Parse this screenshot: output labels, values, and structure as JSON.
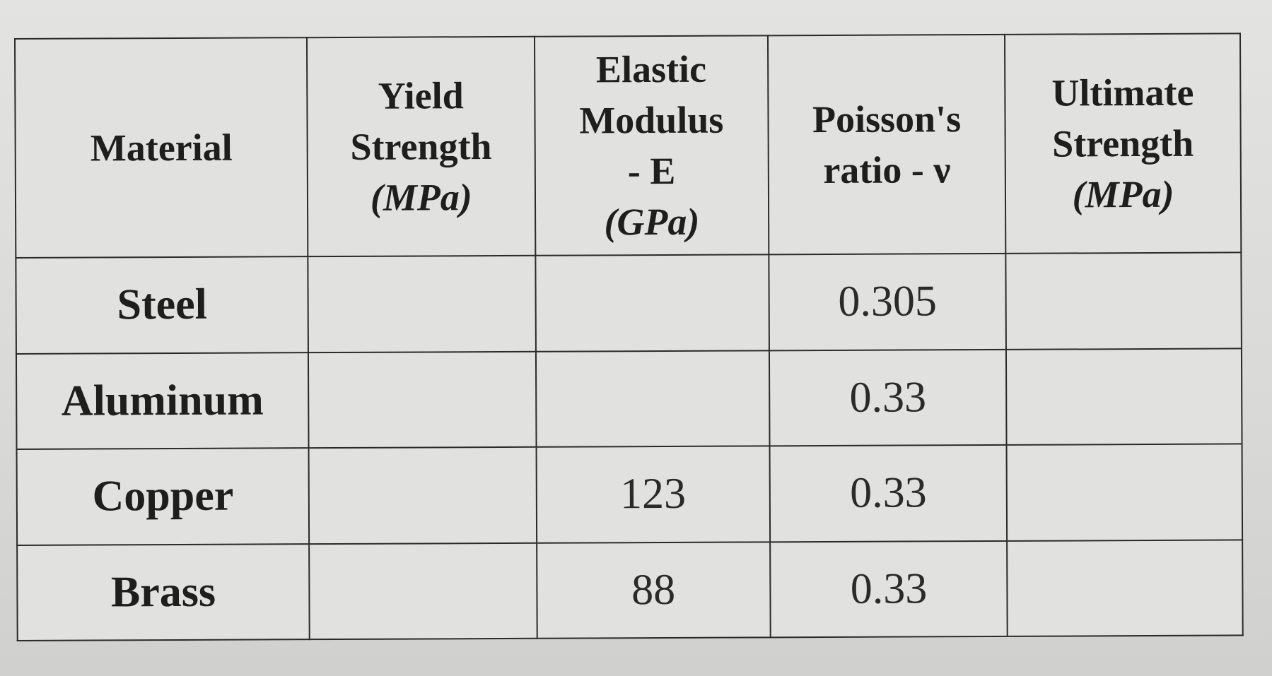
{
  "table": {
    "headers": [
      {
        "lines": [
          "Material"
        ],
        "unit": ""
      },
      {
        "lines": [
          "Yield",
          "Strength"
        ],
        "unit": "(MPa)"
      },
      {
        "lines": [
          "Elastic",
          "Modulus",
          "- E"
        ],
        "unit": "(GPa)"
      },
      {
        "lines": [
          "Poisson's",
          "ratio - ν"
        ],
        "unit": ""
      },
      {
        "lines": [
          "Ultimate",
          "Strength"
        ],
        "unit": "(MPa)"
      }
    ],
    "rows": [
      {
        "material": "Steel",
        "yield": "",
        "modulus": "",
        "poisson": "0.305",
        "ultimate": ""
      },
      {
        "material": "Aluminum",
        "yield": "",
        "modulus": "",
        "poisson": "0.33",
        "ultimate": ""
      },
      {
        "material": "Copper",
        "yield": "",
        "modulus": "123",
        "poisson": "0.33",
        "ultimate": ""
      },
      {
        "material": "Brass",
        "yield": "",
        "modulus": "88",
        "poisson": "0.33",
        "ultimate": ""
      }
    ]
  }
}
